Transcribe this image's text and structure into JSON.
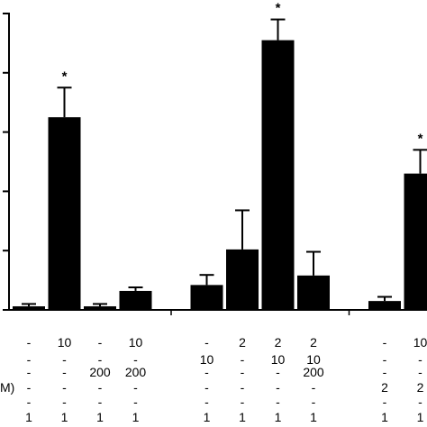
{
  "chart_data": {
    "type": "bar",
    "title": "",
    "xlabel": "",
    "ylabel": "",
    "ylim": [
      0,
      5.3
    ],
    "y_ticks": [
      0,
      1,
      2,
      3,
      4,
      5
    ],
    "grid": false,
    "legend": "none",
    "colors": {
      "bar": "#000000",
      "axis": "#000000",
      "background": "#ffffff"
    },
    "bars": [
      {
        "value": 0.06,
        "error": 0.04,
        "star": false
      },
      {
        "value": 3.25,
        "error": 0.5,
        "star": true
      },
      {
        "value": 0.06,
        "error": 0.04,
        "star": false
      },
      {
        "value": 0.32,
        "error": 0.06,
        "star": false
      },
      {
        "value": null,
        "error": null,
        "star": false
      },
      {
        "value": 0.42,
        "error": 0.17,
        "star": false
      },
      {
        "value": 1.02,
        "error": 0.66,
        "star": false
      },
      {
        "value": 4.55,
        "error": 0.35,
        "star": true
      },
      {
        "value": 0.58,
        "error": 0.4,
        "star": false
      },
      {
        "value": null,
        "error": null,
        "star": false
      },
      {
        "value": 0.15,
        "error": 0.07,
        "star": false
      },
      {
        "value": 2.3,
        "error": 0.4,
        "star": true
      }
    ],
    "star_label": "*",
    "condition_table": {
      "row_labels": [
        "",
        "",
        "",
        "M)",
        "",
        ""
      ],
      "rows": [
        [
          "-",
          "10",
          "-",
          "10",
          "",
          "-",
          "2",
          "2",
          "2",
          "",
          "-",
          "10"
        ],
        [
          "-",
          "-",
          "-",
          "-",
          "",
          "10",
          "-",
          "10",
          "10",
          "",
          "-",
          "-"
        ],
        [
          "-",
          "-",
          "200",
          "200",
          "",
          "-",
          "-",
          "-",
          "200",
          "",
          "-",
          "-"
        ],
        [
          "-",
          "-",
          "-",
          "-",
          "",
          "-",
          "-",
          "-",
          "-",
          "",
          "2",
          "2"
        ],
        [
          "-",
          "-",
          "-",
          "-",
          "",
          "-",
          "-",
          "-",
          "-",
          "",
          "-",
          "-"
        ],
        [
          "1",
          "1",
          "1",
          "1",
          "",
          "1",
          "1",
          "1",
          "1",
          "",
          "1",
          "1"
        ]
      ]
    }
  }
}
